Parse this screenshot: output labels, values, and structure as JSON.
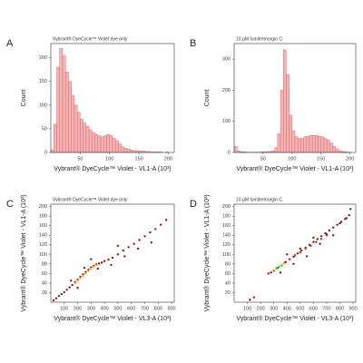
{
  "chart_data": [
    {
      "type": "histogram",
      "panel_label": "A",
      "title": "Vybrant® DyeCycle™ Violet dye only",
      "x_label": "Vybrant® DyeCycle™ Violet - VL1-A (10³)",
      "y_label": "Count",
      "bins": [
        0,
        5,
        10,
        15,
        20,
        25,
        30,
        35,
        40,
        45,
        50,
        55,
        60,
        65,
        70,
        75,
        80,
        85,
        90,
        95,
        100,
        105,
        110,
        115,
        120,
        125,
        130,
        135,
        140,
        145,
        150,
        155,
        160,
        165,
        170,
        175,
        180,
        185,
        190,
        195,
        200,
        205,
        210
      ],
      "counts": [
        5,
        60,
        180,
        220,
        205,
        170,
        150,
        120,
        100,
        85,
        70,
        62,
        55,
        48,
        42,
        38,
        35,
        33,
        35,
        38,
        36,
        30,
        25,
        18,
        12,
        9,
        7,
        5,
        4,
        4,
        3,
        3,
        2,
        2,
        1,
        1,
        1,
        1,
        0,
        1,
        0,
        0
      ],
      "color": "#f4b3b3",
      "edge_color": "#d9595f",
      "xlim": [
        0,
        210
      ],
      "ylim": [
        0,
        230
      ],
      "xticks": [
        50,
        100,
        150,
        200
      ],
      "yticks": [
        0,
        50,
        100,
        150,
        200
      ]
    },
    {
      "type": "histogram",
      "panel_label": "B",
      "title": "10 µM fumitremorgin C",
      "x_label": "Vybrant® DyeCycle™ Violet - VL1-A (10³)",
      "y_label": "Count",
      "bins": [
        0,
        5,
        10,
        15,
        20,
        25,
        30,
        35,
        40,
        45,
        50,
        55,
        60,
        65,
        70,
        75,
        80,
        85,
        90,
        95,
        100,
        105,
        110,
        115,
        120,
        125,
        130,
        135,
        140,
        145,
        150,
        155,
        160,
        165,
        170,
        175,
        180,
        185,
        190,
        195,
        200,
        205,
        210
      ],
      "counts": [
        20,
        5,
        2,
        2,
        1,
        1,
        1,
        1,
        1,
        2,
        2,
        3,
        3,
        5,
        15,
        60,
        200,
        330,
        250,
        120,
        70,
        50,
        45,
        45,
        50,
        52,
        55,
        55,
        55,
        52,
        50,
        45,
        40,
        30,
        20,
        12,
        6,
        3,
        2,
        1,
        0,
        0
      ],
      "color": "#f4b3b3",
      "edge_color": "#d9595f",
      "xlim": [
        0,
        210
      ],
      "ylim": [
        0,
        350
      ],
      "xticks": [
        50,
        100,
        150,
        200
      ],
      "yticks": [
        0,
        100,
        200,
        300
      ]
    },
    {
      "type": "scatter",
      "panel_label": "C",
      "title": "Vybrant® DyeCycle™ Violet dye only",
      "x_label": "Vybrant® DyeCycle™ Violet - VL3-A (10³)",
      "y_label": "Vybrant® DyeCycle™ Violet - VL1-A (10³)",
      "series": [
        {
          "color": "#8b1a1a",
          "x": [
            20,
            40,
            60,
            80,
            100,
            120,
            140,
            160,
            180,
            200,
            220,
            240,
            260,
            280,
            300,
            320,
            340,
            360,
            380,
            400,
            430,
            460,
            500,
            540,
            580,
            620,
            660,
            700,
            740,
            780,
            820,
            860,
            150,
            250,
            350,
            450,
            550,
            650,
            750,
            300,
            200,
            500
          ],
          "y": [
            4,
            8,
            13,
            17,
            21,
            26,
            31,
            36,
            42,
            47,
            53,
            58,
            63,
            68,
            73,
            76,
            79,
            81,
            83,
            86,
            89,
            93,
            100,
            108,
            115,
            122,
            130,
            138,
            146,
            153,
            162,
            172,
            45,
            72,
            70,
            78,
            96,
            112,
            125,
            90,
            30,
            118
          ]
        },
        {
          "color": "#f5a623",
          "x": [
            180,
            200,
            220,
            240,
            260,
            280,
            300,
            320,
            340
          ],
          "y": [
            40,
            45,
            50,
            55,
            60,
            65,
            70,
            74,
            77
          ]
        }
      ],
      "xlim": [
        0,
        920
      ],
      "ylim": [
        0,
        205
      ],
      "xticks": [
        100,
        200,
        300,
        400,
        500,
        600,
        700,
        800,
        900
      ],
      "yticks": [
        20,
        40,
        60,
        80,
        100,
        120,
        140,
        160,
        180,
        200
      ]
    },
    {
      "type": "scatter",
      "panel_label": "D",
      "title": "10 µM fumitremorgin C",
      "x_label": "Vybrant® DyeCycle™ Violet - VL3-A (10³)",
      "y_label": "Vybrant® DyeCycle™ Violet - VL1-A (10³)",
      "series": [
        {
          "color": "#8b1a1a",
          "x": [
            120,
            150,
            260,
            280,
            300,
            330,
            360,
            390,
            420,
            450,
            480,
            510,
            540,
            570,
            600,
            630,
            660,
            690,
            720,
            750,
            780,
            810,
            840,
            870,
            400,
            500,
            600,
            700,
            800,
            350,
            450,
            550,
            650,
            750,
            850,
            880
          ],
          "y": [
            5,
            10,
            60,
            62,
            66,
            72,
            78,
            84,
            90,
            95,
            102,
            108,
            114,
            120,
            126,
            132,
            138,
            144,
            150,
            156,
            162,
            168,
            174,
            182,
            100,
            112,
            135,
            142,
            165,
            62,
            80,
            96,
            122,
            140,
            176,
            195
          ]
        },
        {
          "color": "#e02020",
          "x": [
            380,
            420,
            460,
            500,
            540,
            580,
            620,
            660,
            700
          ],
          "y": [
            82,
            90,
            98,
            104,
            112,
            118,
            126,
            132,
            140
          ]
        },
        {
          "color": "#f5d020",
          "x": [
            300,
            320,
            340,
            360,
            380
          ],
          "y": [
            68,
            72,
            75,
            78,
            80
          ]
        },
        {
          "color": "#40c080",
          "x": [
            320,
            340,
            360
          ],
          "y": [
            70,
            74,
            76
          ]
        }
      ],
      "xlim": [
        0,
        920
      ],
      "ylim": [
        0,
        205
      ],
      "xticks": [
        100,
        200,
        300,
        400,
        500,
        600,
        700,
        800,
        900
      ],
      "yticks": [
        20,
        40,
        60,
        80,
        100,
        120,
        140,
        160,
        180,
        200
      ]
    }
  ]
}
